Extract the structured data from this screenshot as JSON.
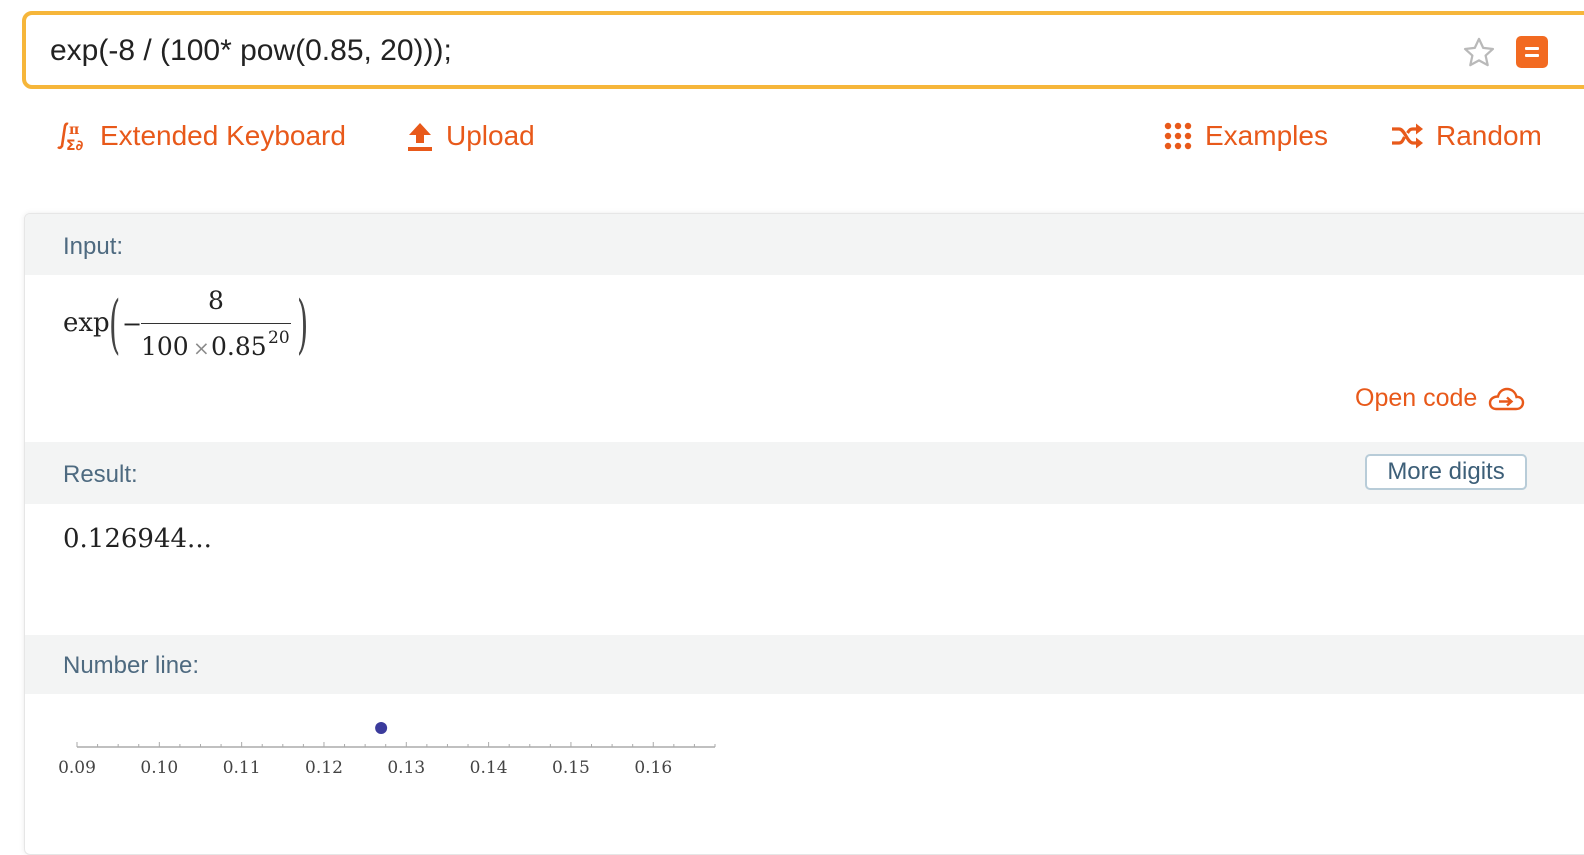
{
  "search": {
    "query": "exp(-8 / (100* pow(0.85, 20)));"
  },
  "toolbar": {
    "extended_keyboard": "Extended Keyboard",
    "upload": "Upload",
    "examples": "Examples",
    "random": "Random"
  },
  "input_pod": {
    "title": "Input:",
    "func": "exp",
    "minus": "−",
    "numerator": "8",
    "den_coef": "100",
    "times": "×",
    "base": "0.85",
    "exponent": "20",
    "open_code": "Open code"
  },
  "result_pod": {
    "title": "Result:",
    "value": "0.126944...",
    "more_digits": "More digits"
  },
  "number_line_pod": {
    "title": "Number line:"
  },
  "chart_data": {
    "type": "scatter",
    "xlim": [
      0.09,
      0.1675
    ],
    "tick_labels": [
      "0.09",
      "0.10",
      "0.11",
      "0.12",
      "0.13",
      "0.14",
      "0.15",
      "0.16"
    ],
    "tick_values": [
      0.09,
      0.1,
      0.11,
      0.12,
      0.13,
      0.14,
      0.15,
      0.16
    ],
    "minor_step": 0.0025,
    "points": [
      0.126944
    ],
    "point_color": "#3b3b9c"
  },
  "colors": {
    "accent": "#e8591a",
    "focus_border": "#f6b63a",
    "pod_header": "#f3f4f4",
    "label": "#4e6a80"
  }
}
